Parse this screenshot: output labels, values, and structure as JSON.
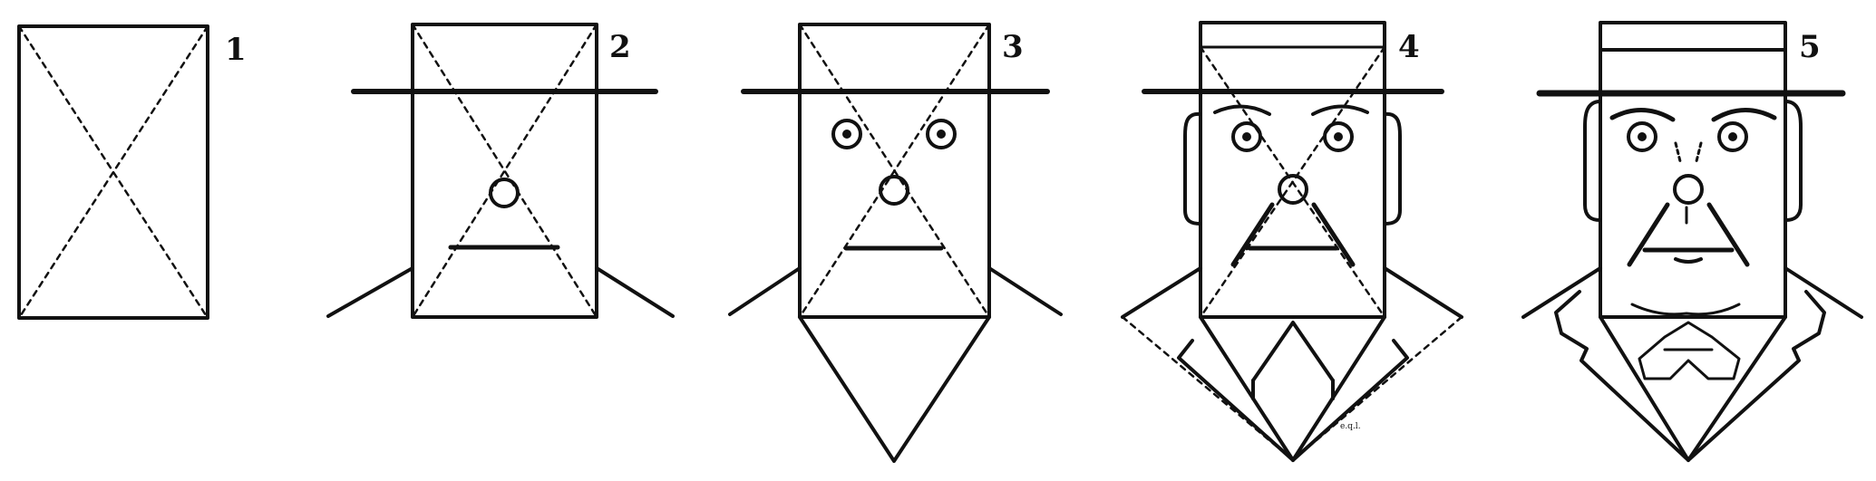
{
  "figure": {
    "panels": [
      {
        "label": "1"
      },
      {
        "label": "2"
      },
      {
        "label": "3"
      },
      {
        "label": "4"
      },
      {
        "label": "5"
      }
    ],
    "initials": "e.q.l."
  },
  "colors": {
    "ink": "#111111",
    "paper": "#ffffff"
  }
}
